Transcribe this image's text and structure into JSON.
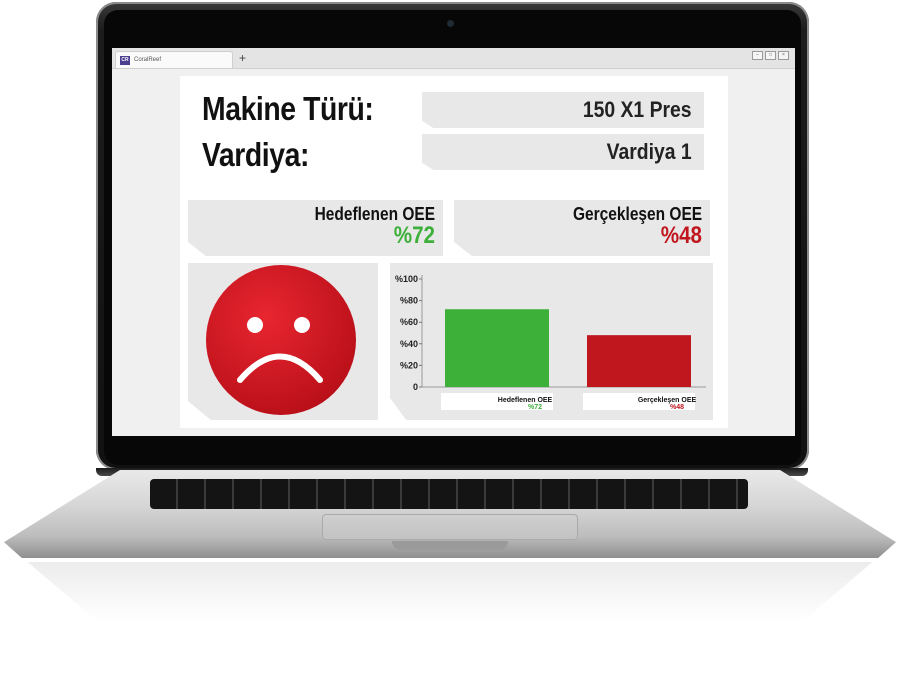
{
  "browser": {
    "tab_logo": "CR",
    "tab_title": "CoralReef",
    "new_tab": "+",
    "window_controls": [
      "–",
      "□",
      "×"
    ]
  },
  "dashboard": {
    "machine_label": "Makine Türü:",
    "machine_value": "150 X1 Pres",
    "shift_label": "Vardiya:",
    "shift_value": "Vardiya 1",
    "target_label": "Hedeflenen OEE",
    "target_value": "%72",
    "actual_label": "Gerçekleşen OEE",
    "actual_value": "%48",
    "status_face": "sad-face-icon",
    "colors": {
      "target": "#3db03a",
      "actual": "#c0171f",
      "face": "#d7141f"
    }
  },
  "chart_data": {
    "type": "bar",
    "categories": [
      "Hedeflenen OEE",
      "Gerçekleşen OEE"
    ],
    "values": [
      72,
      48
    ],
    "value_labels": [
      "%72",
      "%48"
    ],
    "colors": [
      "#3db03a",
      "#c0171f"
    ],
    "ylim": [
      0,
      100
    ],
    "yticks": [
      0,
      20,
      40,
      60,
      80,
      100
    ],
    "ytick_labels": [
      "0",
      "%20",
      "%40",
      "%60",
      "%80",
      "%100"
    ],
    "grid": false
  }
}
